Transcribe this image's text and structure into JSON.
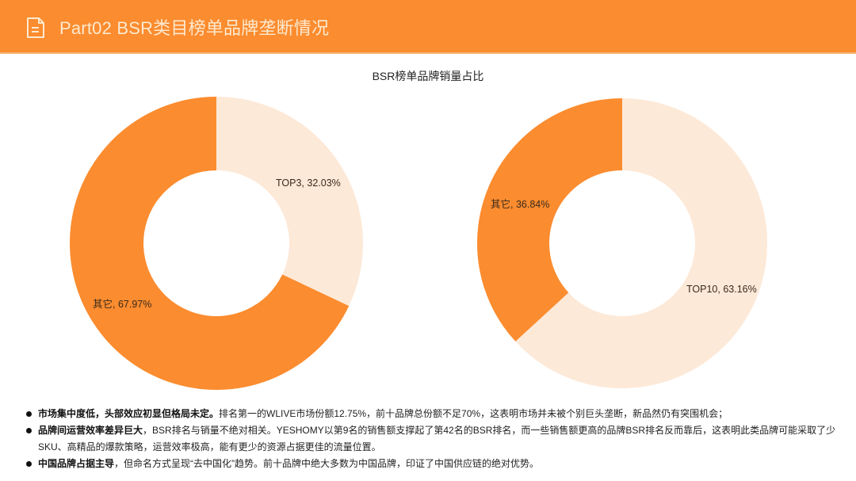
{
  "header": {
    "icon": "document-icon",
    "title": "Part02 BSR类目榜单品牌垄断情况",
    "background_color": "#fb8c2f"
  },
  "chart_title": "BSR榜单品牌销量占比",
  "colors": {
    "dark_orange": "#fb8c2f",
    "light_peach": "#fde9d8"
  },
  "chart_data": [
    {
      "type": "pie",
      "donut": true,
      "title": "BSR榜单品牌销量占比",
      "categories": [
        "TOP3",
        "其它"
      ],
      "values": [
        32.03,
        67.97
      ],
      "colors": [
        "#fde9d8",
        "#fb8c2f"
      ],
      "labels": [
        "TOP3, 32.03%",
        "其它, 67.97%"
      ]
    },
    {
      "type": "pie",
      "donut": true,
      "title": "BSR榜单品牌销量占比",
      "categories": [
        "TOP10",
        "其它"
      ],
      "values": [
        63.16,
        36.84
      ],
      "colors": [
        "#fde9d8",
        "#fb8c2f"
      ],
      "labels": [
        "TOP10, 63.16%",
        "其它, 36.84%"
      ]
    }
  ],
  "notes": [
    {
      "bold": "市场集中度低，头部效应初显但格局未定。",
      "text": "排名第一的WLIVE市场份额12.75%，前十品牌总份额不足70%，这表明市场并未被个别巨头垄断，新品然仍有突围机会；"
    },
    {
      "bold": "品牌间运营效率差异巨大",
      "text": "，BSR排名与销量不绝对相关。YESHOMY以第9名的销售额支撑起了第42名的BSR排名，而一些销售额更高的品牌BSR排名反而靠后，这表明此类品牌可能采取了少SKU、高精品的爆款策略，运营效率极高，能有更少的资源占据更佳的流量位置。"
    },
    {
      "bold": "中国品牌占据主导",
      "text": "，但命名方式呈现“去中国化”趋势。前十品牌中绝大多数为中国品牌，印证了中国供应链的绝对优势。"
    }
  ]
}
